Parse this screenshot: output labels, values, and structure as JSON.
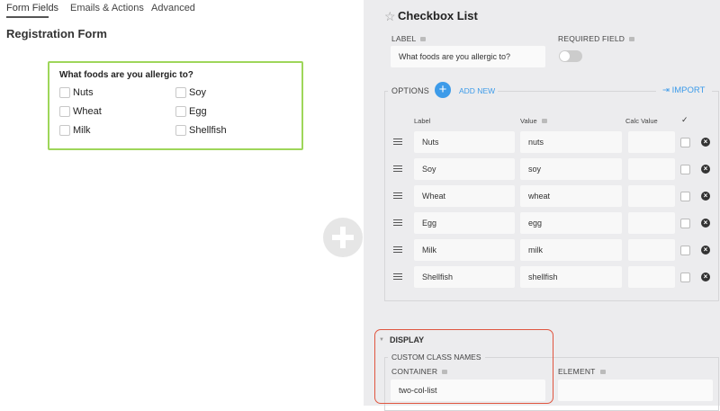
{
  "tabs": [
    {
      "label": "Form Fields",
      "active": true
    },
    {
      "label": "Emails & Actions"
    },
    {
      "label": "Advanced"
    }
  ],
  "form_title": "Registration Form",
  "preview": {
    "question": "What foods are you allergic to?",
    "options": [
      "Nuts",
      "Soy",
      "Wheat",
      "Egg",
      "Milk",
      "Shellfish"
    ]
  },
  "add_icon": "plus-circle-icon",
  "panel": {
    "title": "Checkbox List",
    "title_icon": "star-outline-icon",
    "label_label": "LABEL",
    "label_value": "What foods are you allergic to?",
    "required_label": "REQUIRED FIELD",
    "required_on": false,
    "options_label": "OPTIONS",
    "add_new": "ADD NEW",
    "import": "IMPORT",
    "columns": {
      "label": "Label",
      "value": "Value",
      "calc": "Calc Value",
      "check": "✓"
    },
    "rows": [
      {
        "label": "Nuts",
        "value": "nuts",
        "calc": ""
      },
      {
        "label": "Soy",
        "value": "soy",
        "calc": ""
      },
      {
        "label": "Wheat",
        "value": "wheat",
        "calc": ""
      },
      {
        "label": "Egg",
        "value": "egg",
        "calc": ""
      },
      {
        "label": "Milk",
        "value": "milk",
        "calc": ""
      },
      {
        "label": "Shellfish",
        "value": "shellfish",
        "calc": ""
      }
    ],
    "display": "DISPLAY",
    "custom_class": "CUSTOM CLASS NAMES",
    "container_label": "CONTAINER",
    "container_value": "two-col-list",
    "element_label": "ELEMENT",
    "element_value": ""
  },
  "colors": {
    "accent": "#3d9be9",
    "highlight": "#e0553f",
    "card_border": "#9ed65a",
    "panel_bg": "#ececee"
  }
}
